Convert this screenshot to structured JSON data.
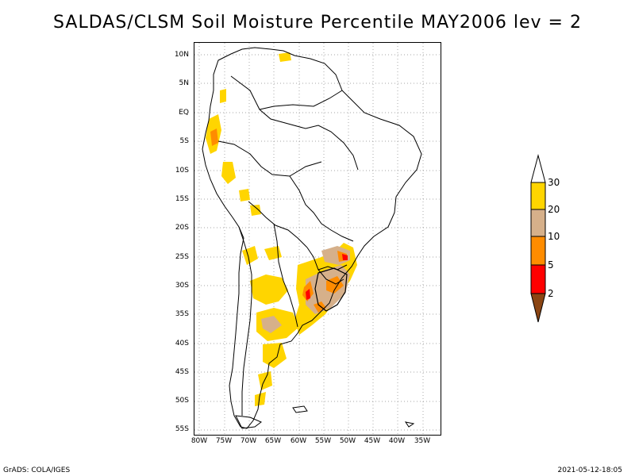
{
  "title": "SALDAS/CLSM Soil Moisture Percentile MAY2006 lev = 2",
  "map": {
    "region": "South America",
    "lat_ticks": [
      "10N",
      "5N",
      "EQ",
      "5S",
      "10S",
      "15S",
      "20S",
      "25S",
      "30S",
      "35S",
      "40S",
      "45S",
      "50S",
      "55S"
    ],
    "lon_ticks": [
      "80W",
      "75W",
      "70W",
      "65W",
      "60W",
      "55W",
      "50W",
      "45W",
      "40W",
      "35W"
    ]
  },
  "colorbar": {
    "labels": [
      "30",
      "20",
      "10",
      "5",
      "2"
    ],
    "colors": {
      "above_30": "#ffffff",
      "c20_30": "#ffd500",
      "c10_20": "#d6b08a",
      "c5_10": "#ff8c00",
      "c2_5": "#ff0000",
      "below_2": "#8b4513"
    }
  },
  "footer": {
    "left": "GrADS: COLA/IGES",
    "right": "2021-05-12-18:05"
  }
}
